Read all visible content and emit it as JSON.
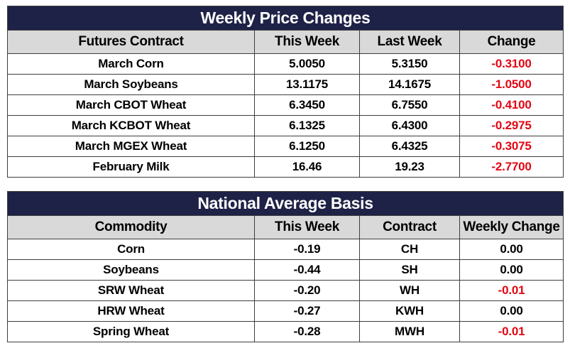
{
  "weekly_price_changes": {
    "title": "Weekly Price Changes",
    "headers": [
      "Futures Contract",
      "This Week",
      "Last Week",
      "Change"
    ],
    "rows": [
      {
        "contract": "March Corn",
        "this_week": "5.0050",
        "last_week": "5.3150",
        "change": "-0.3100"
      },
      {
        "contract": "March Soybeans",
        "this_week": "13.1175",
        "last_week": "14.1675",
        "change": "-1.0500"
      },
      {
        "contract": "March CBOT Wheat",
        "this_week": "6.3450",
        "last_week": "6.7550",
        "change": "-0.4100"
      },
      {
        "contract": "March KCBOT Wheat",
        "this_week": "6.1325",
        "last_week": "6.4300",
        "change": "-0.2975"
      },
      {
        "contract": "March MGEX Wheat",
        "this_week": "6.1250",
        "last_week": "6.4325",
        "change": "-0.3075"
      },
      {
        "contract": "February Milk",
        "this_week": "16.46",
        "last_week": "19.23",
        "change": "-2.7700"
      }
    ]
  },
  "national_average_basis": {
    "title": "National Average Basis",
    "headers": [
      "Commodity",
      "This Week",
      "Contract",
      "Weekly Change"
    ],
    "rows": [
      {
        "commodity": "Corn",
        "this_week": "-0.19",
        "contract": "CH",
        "weekly_change": "0.00"
      },
      {
        "commodity": "Soybeans",
        "this_week": "-0.44",
        "contract": "SH",
        "weekly_change": "0.00"
      },
      {
        "commodity": "SRW Wheat",
        "this_week": "-0.20",
        "contract": "WH",
        "weekly_change": "-0.01"
      },
      {
        "commodity": "HRW Wheat",
        "this_week": "-0.27",
        "contract": "KWH",
        "weekly_change": "0.00"
      },
      {
        "commodity": "Spring Wheat",
        "this_week": "-0.28",
        "contract": "MWH",
        "weekly_change": "-0.01"
      }
    ]
  },
  "colors": {
    "title_bar": "#1f2247",
    "header_bg": "#d9d9d9",
    "negative_change": "#e30613",
    "border": "#3d3d3d"
  }
}
